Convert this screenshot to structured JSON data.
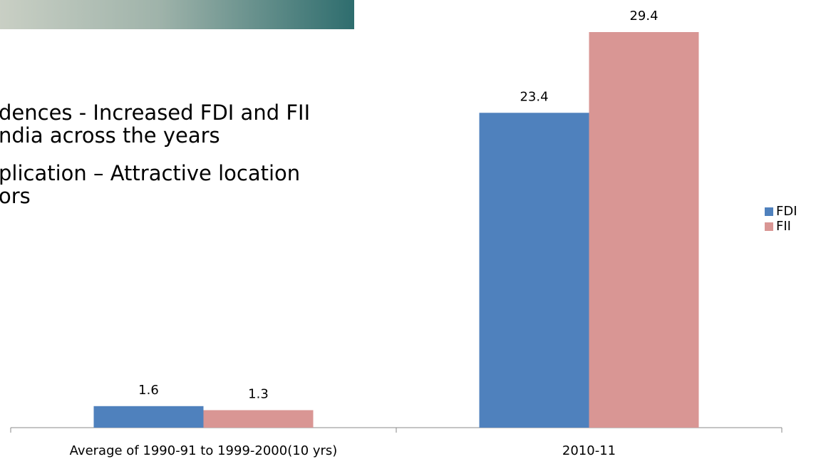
{
  "slide_text": [
    "dences - Increased  FDI and FII",
    "ndia across the years",
    "plication – Attractive location",
    "ors"
  ],
  "chart_data": {
    "type": "bar",
    "categories": [
      "Average of 1990-91 to 1999-2000(10 yrs)",
      "2010-11"
    ],
    "series": [
      {
        "name": "FDI",
        "color": "#4f81bd",
        "values": [
          1.6,
          23.4
        ]
      },
      {
        "name": "FII",
        "color": "#d99694",
        "values": [
          1.3,
          29.4
        ]
      }
    ],
    "legend": "right"
  }
}
